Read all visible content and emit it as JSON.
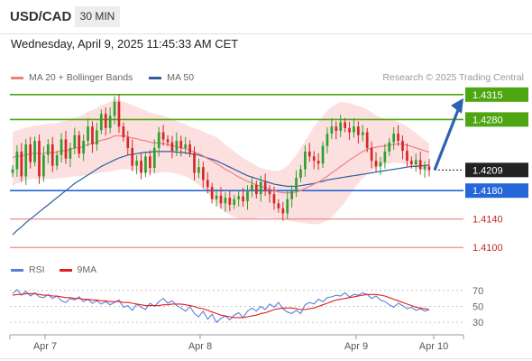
{
  "header": {
    "symbol": "USD/CAD",
    "timeframe": "30 MIN",
    "datetime": "Wednesday, April 9, 2025 11:45:33 AM CET"
  },
  "legend": {
    "ma20": "MA 20 + Bollinger Bands",
    "ma50": "MA 50",
    "copyright": "Research © 2025 Trading Central"
  },
  "rsi_legend": {
    "rsi": "RSI",
    "ma9": "9MA"
  },
  "colors": {
    "bull": "#2ea02e",
    "bear": "#d62728",
    "ma20": "#f08080",
    "ma50": "#2f5f9f",
    "band_fill": "#fbd5d5",
    "resistance": "#4ea613",
    "pivot": "#2566d8",
    "support": "#e57373",
    "rsi": "#5b7fd8",
    "rsi_ma": "#e02020",
    "arrow": "#2a63b0"
  },
  "chart_data": [
    {
      "type": "line",
      "title": "USD/CAD 30 MIN",
      "y_range": [
        1.408,
        1.433
      ],
      "x_ticks": [
        "Apr 7",
        "Apr 8",
        "Apr 9",
        "Apr 10"
      ],
      "last_price": "1.4209",
      "levels": [
        {
          "value": 1.4315,
          "label": "1.4315",
          "kind": "resistance",
          "tag": "filled"
        },
        {
          "value": 1.428,
          "label": "1.4280",
          "kind": "resistance",
          "tag": "filled"
        },
        {
          "value": 1.418,
          "label": "1.4180",
          "kind": "pivot",
          "tag": "filled"
        },
        {
          "value": 1.414,
          "label": "1.4140",
          "kind": "support",
          "tag": "text"
        },
        {
          "value": 1.41,
          "label": "1.4100",
          "kind": "support",
          "tag": "text"
        }
      ],
      "close": [
        1.421,
        1.4235,
        1.42,
        1.4245,
        1.422,
        1.425,
        1.42,
        1.423,
        1.4245,
        1.4215,
        1.423,
        1.4252,
        1.4225,
        1.424,
        1.4258,
        1.4232,
        1.425,
        1.427,
        1.4245,
        1.4265,
        1.4288,
        1.4268,
        1.4285,
        1.4305,
        1.427,
        1.4255,
        1.424,
        1.4215,
        1.4222,
        1.4205,
        1.4228,
        1.4212,
        1.424,
        1.4262,
        1.4252,
        1.4248,
        1.4236,
        1.425,
        1.424,
        1.4245,
        1.4233,
        1.4205,
        1.4213,
        1.4195,
        1.4185,
        1.4168,
        1.4173,
        1.4162,
        1.417,
        1.416,
        1.4168,
        1.4172,
        1.4165,
        1.418,
        1.4188,
        1.4175,
        1.4192,
        1.418,
        1.4175,
        1.4162,
        1.4155,
        1.4148,
        1.4168,
        1.418,
        1.4198,
        1.421,
        1.4235,
        1.4228,
        1.4222,
        1.4218,
        1.4243,
        1.426,
        1.427,
        1.4264,
        1.4276,
        1.4268,
        1.4262,
        1.427,
        1.4258,
        1.4262,
        1.424,
        1.4222,
        1.4214,
        1.422,
        1.4235,
        1.4248,
        1.426,
        1.425,
        1.4236,
        1.4222,
        1.4217,
        1.4223,
        1.421,
        1.4214,
        1.4209
      ],
      "ma20": [
        1.4226,
        1.4229,
        1.4228,
        1.4231,
        1.4231,
        1.4233,
        1.4232,
        1.4232,
        1.4234,
        1.4233,
        1.4234,
        1.4236,
        1.4236,
        1.4238,
        1.424,
        1.424,
        1.4242,
        1.4245,
        1.4246,
        1.4248,
        1.4251,
        1.4252,
        1.4254,
        1.4257,
        1.4257,
        1.4257,
        1.4256,
        1.4254,
        1.4253,
        1.4251,
        1.425,
        1.4248,
        1.4247,
        1.4247,
        1.4246,
        1.4245,
        1.4243,
        1.4242,
        1.424,
        1.4239,
        1.4237,
        1.4234,
        1.4232,
        1.4229,
        1.4225,
        1.4222,
        1.4218,
        1.4214,
        1.421,
        1.4207,
        1.4203,
        1.4199,
        1.4196,
        1.4193,
        1.4191,
        1.4188,
        1.4186,
        1.4184,
        1.4182,
        1.418,
        1.4178,
        1.4177,
        1.4177,
        1.4177,
        1.4178,
        1.418,
        1.4183,
        1.4186,
        1.4189,
        1.4192,
        1.4196,
        1.42,
        1.4205,
        1.4209,
        1.4214,
        1.4218,
        1.4223,
        1.4227,
        1.4231,
        1.4235,
        1.4238,
        1.424,
        1.4241,
        1.4242,
        1.4243,
        1.4244,
        1.4245,
        1.4246,
        1.4245,
        1.4244,
        1.4242,
        1.424,
        1.4238,
        1.4236,
        1.4234
      ],
      "ma50": [
        1.4118,
        1.4124,
        1.4129,
        1.4135,
        1.414,
        1.4145,
        1.415,
        1.4155,
        1.416,
        1.4165,
        1.417,
        1.4175,
        1.418,
        1.4185,
        1.419,
        1.4194,
        1.4198,
        1.4202,
        1.4206,
        1.421,
        1.4214,
        1.4217,
        1.422,
        1.4223,
        1.4226,
        1.4228,
        1.423,
        1.4231,
        1.4232,
        1.4233,
        1.4234,
        1.4234,
        1.4235,
        1.4235,
        1.4235,
        1.4235,
        1.4235,
        1.4234,
        1.4234,
        1.4233,
        1.4232,
        1.4231,
        1.423,
        1.4228,
        1.4226,
        1.4224,
        1.4222,
        1.4219,
        1.4216,
        1.4213,
        1.421,
        1.4207,
        1.4204,
        1.4201,
        1.4199,
        1.4197,
        1.4195,
        1.4193,
        1.4191,
        1.4189,
        1.4188,
        1.4187,
        1.4186,
        1.4186,
        1.4186,
        1.4187,
        1.4188,
        1.4189,
        1.419,
        1.4192,
        1.4193,
        1.4195,
        1.4196,
        1.4197,
        1.4198,
        1.4199,
        1.42,
        1.4201,
        1.4202,
        1.4203,
        1.4204,
        1.4205,
        1.4206,
        1.4207,
        1.4208,
        1.4209,
        1.421,
        1.4211,
        1.4212,
        1.4213,
        1.4214,
        1.4214,
        1.4215,
        1.4215,
        1.4216
      ],
      "band_upper": [
        1.4262,
        1.4265,
        1.4266,
        1.4269,
        1.427,
        1.4272,
        1.4272,
        1.4273,
        1.4274,
        1.4274,
        1.4275,
        1.4277,
        1.4278,
        1.428,
        1.4283,
        1.4284,
        1.4287,
        1.4291,
        1.4293,
        1.4296,
        1.43,
        1.4302,
        1.4305,
        1.4308,
        1.4307,
        1.4305,
        1.4303,
        1.43,
        1.4298,
        1.4295,
        1.4293,
        1.429,
        1.4288,
        1.4287,
        1.4285,
        1.4283,
        1.428,
        1.4278,
        1.4275,
        1.4273,
        1.427,
        1.4268,
        1.4266,
        1.4263,
        1.426,
        1.4258,
        1.4255,
        1.425,
        1.4245,
        1.424,
        1.4235,
        1.423,
        1.4226,
        1.4222,
        1.4219,
        1.4215,
        1.4212,
        1.421,
        1.4209,
        1.4208,
        1.4208,
        1.421,
        1.4215,
        1.4222,
        1.423,
        1.424,
        1.425,
        1.426,
        1.427,
        1.4278,
        1.4285,
        1.4292,
        1.4298,
        1.4302,
        1.4305,
        1.4304,
        1.4303,
        1.4301,
        1.4299,
        1.4297,
        1.4294,
        1.429,
        1.4286,
        1.4283,
        1.4281,
        1.428,
        1.4279,
        1.4277,
        1.4274,
        1.427,
        1.4266,
        1.4261,
        1.4256,
        1.4251,
        1.4246
      ],
      "band_lower": [
        1.4186,
        1.419,
        1.4192,
        1.4195,
        1.4196,
        1.4197,
        1.4196,
        1.4196,
        1.4197,
        1.4196,
        1.4197,
        1.4198,
        1.4198,
        1.4199,
        1.42,
        1.42,
        1.4201,
        1.4202,
        1.4203,
        1.4204,
        1.4205,
        1.4206,
        1.4207,
        1.4208,
        1.4209,
        1.421,
        1.421,
        1.4209,
        1.4208,
        1.4207,
        1.4206,
        1.4205,
        1.4205,
        1.4205,
        1.4206,
        1.4206,
        1.4205,
        1.4204,
        1.4202,
        1.42,
        1.4197,
        1.4192,
        1.4188,
        1.4183,
        1.4177,
        1.417,
        1.4162,
        1.4155,
        1.415,
        1.4146,
        1.4143,
        1.4141,
        1.414,
        1.414,
        1.414,
        1.4141,
        1.4142,
        1.4142,
        1.4142,
        1.4141,
        1.414,
        1.4139,
        1.4138,
        1.4137,
        1.4136,
        1.4135,
        1.4134,
        1.4133,
        1.4133,
        1.4133,
        1.4135,
        1.4138,
        1.4143,
        1.4149,
        1.4156,
        1.4164,
        1.4173,
        1.4182,
        1.419,
        1.4197,
        1.4203,
        1.4208,
        1.4212,
        1.4215,
        1.4217,
        1.4218,
        1.4219,
        1.4219,
        1.4218,
        1.4216,
        1.4214,
        1.4212,
        1.421,
        1.4208,
        1.4206
      ]
    },
    {
      "type": "line",
      "title": "RSI",
      "y_range": [
        20,
        80
      ],
      "y_ticks": [
        70,
        50,
        30
      ],
      "series": [
        {
          "name": "RSI",
          "values": [
            66,
            71,
            64,
            69,
            63,
            67,
            62,
            61,
            65,
            60,
            63,
            57,
            55,
            60,
            58,
            62,
            56,
            59,
            54,
            57,
            53,
            56,
            52,
            55,
            58,
            49,
            51,
            45,
            53,
            49,
            46,
            54,
            50,
            56,
            60,
            54,
            57,
            51,
            48,
            44,
            50,
            41,
            37,
            44,
            34,
            40,
            30,
            35,
            38,
            33,
            39,
            42,
            36,
            44,
            48,
            44,
            50,
            46,
            53,
            49,
            55,
            47,
            43,
            41,
            45,
            41,
            52,
            55,
            53,
            59,
            56,
            61,
            62,
            64,
            63,
            67,
            62,
            65,
            64,
            67,
            65,
            60,
            63,
            58,
            56,
            52,
            49,
            54,
            51,
            47,
            49,
            45,
            47,
            44,
            46
          ]
        },
        {
          "name": "9MA",
          "values": [
            64,
            65,
            65,
            66,
            66,
            66,
            65,
            64,
            64,
            63,
            63,
            62,
            61,
            61,
            60,
            60,
            59,
            59,
            58,
            58,
            57,
            57,
            56,
            56,
            56,
            55,
            55,
            54,
            53,
            52,
            51,
            51,
            51,
            51,
            52,
            52,
            53,
            53,
            53,
            52,
            51,
            50,
            48,
            47,
            45,
            43,
            41,
            39,
            38,
            37,
            36,
            36,
            36,
            37,
            38,
            39,
            41,
            42,
            44,
            46,
            47,
            48,
            48,
            48,
            47,
            46,
            46,
            47,
            48,
            50,
            52,
            54,
            56,
            58,
            59,
            60,
            61,
            62,
            63,
            64,
            65,
            65,
            65,
            64,
            63,
            61,
            59,
            57,
            55,
            53,
            51,
            49,
            48,
            47,
            46
          ]
        }
      ]
    }
  ]
}
